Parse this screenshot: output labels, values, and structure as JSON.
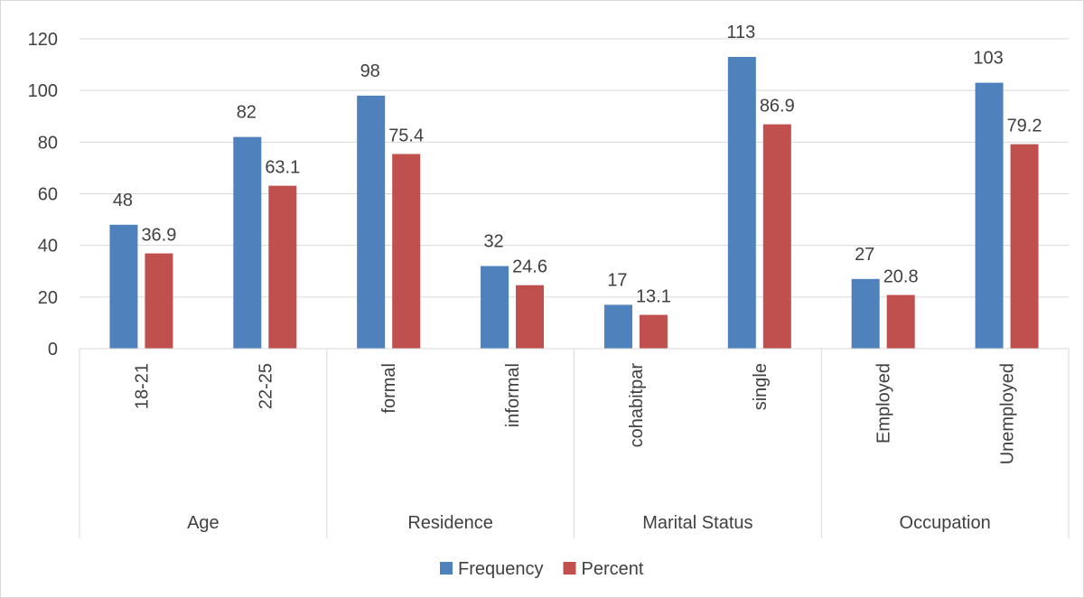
{
  "chart_data": {
    "type": "bar",
    "groups": [
      {
        "label": "Age",
        "categories": [
          "18-21",
          "22-25"
        ]
      },
      {
        "label": "Residence",
        "categories": [
          "formal",
          "informal"
        ]
      },
      {
        "label": "Marital Status",
        "categories": [
          "cohabitpar",
          "single"
        ]
      },
      {
        "label": "Occupation",
        "categories": [
          "Employed",
          "Unemployed"
        ]
      }
    ],
    "categories": [
      "18-21",
      "22-25",
      "formal",
      "informal",
      "cohabitpar",
      "single",
      "Employed",
      "Unemployed"
    ],
    "series": [
      {
        "name": "Frequency",
        "color": "#4f81bd",
        "values": [
          48,
          82,
          98,
          32,
          17,
          113,
          27,
          103
        ]
      },
      {
        "name": "Percent",
        "color": "#c0504d",
        "values": [
          36.9,
          63.1,
          75.4,
          24.6,
          13.1,
          86.9,
          20.8,
          79.2
        ]
      }
    ],
    "data_labels": {
      "Frequency": [
        "48",
        "82",
        "98",
        "32",
        "17",
        "113",
        "27",
        "103"
      ],
      "Percent": [
        "36.9",
        "63.1",
        "75.4",
        "24.6",
        "13.1",
        "86.9",
        "20.8",
        "79.2"
      ]
    },
    "ylim": [
      0,
      120
    ],
    "yticks": [
      0,
      20,
      40,
      60,
      80,
      100,
      120
    ],
    "grid": true,
    "legend_position": "bottom"
  }
}
